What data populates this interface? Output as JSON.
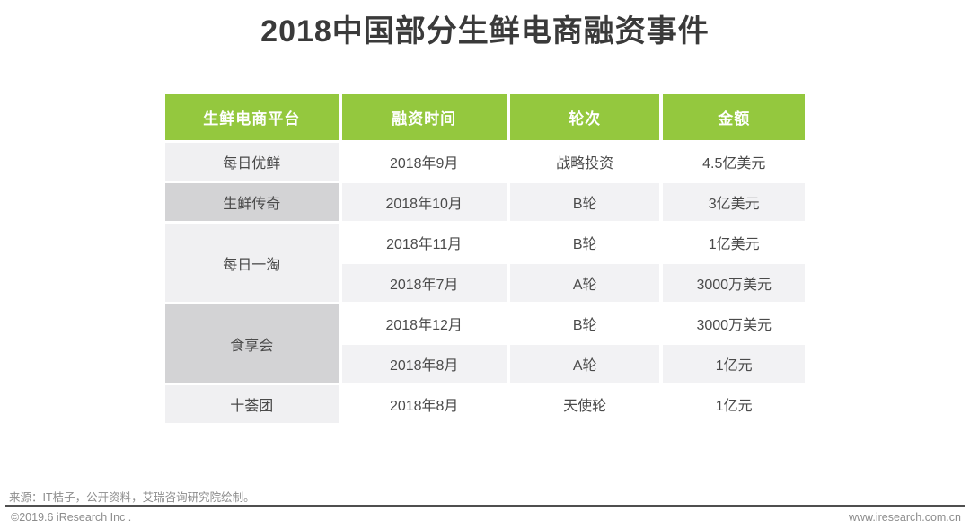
{
  "title": "2018中国部分生鲜电商融资事件",
  "colors": {
    "header_green": "#94c83e",
    "platform_cell_light": "#f0f0f2",
    "platform_cell_dark": "#d3d3d5",
    "row_alt_gray": "#f2f2f4",
    "body_text": "#4a4a4a",
    "title_text": "#3a3a3a",
    "footer_text": "#8c8c8c",
    "footer_line": "#4f4f4f"
  },
  "chart_data": {
    "type": "table",
    "title": "2018中国部分生鲜电商融资事件",
    "columns": [
      "生鲜电商平台",
      "融资时间",
      "轮次",
      "金额"
    ],
    "platform_groups": [
      {
        "name": "每日优鲜",
        "rowspan": 1,
        "shade": "light"
      },
      {
        "name": "生鲜传奇",
        "rowspan": 1,
        "shade": "dark"
      },
      {
        "name": "每日一淘",
        "rowspan": 2,
        "shade": "light"
      },
      {
        "name": "食享会",
        "rowspan": 2,
        "shade": "dark"
      },
      {
        "name": "十荟团",
        "rowspan": 1,
        "shade": "light"
      }
    ],
    "rows": [
      {
        "platform": "每日优鲜",
        "time": "2018年9月",
        "round": "战略投资",
        "amount": "4.5亿美元"
      },
      {
        "platform": "生鲜传奇",
        "time": "2018年10月",
        "round": "B轮",
        "amount": "3亿美元"
      },
      {
        "platform": "每日一淘",
        "time": "2018年11月",
        "round": "B轮",
        "amount": "1亿美元"
      },
      {
        "platform": "每日一淘",
        "time": "2018年7月",
        "round": "A轮",
        "amount": "3000万美元"
      },
      {
        "platform": "食享会",
        "time": "2018年12月",
        "round": "B轮",
        "amount": "3000万美元"
      },
      {
        "platform": "食享会",
        "time": "2018年8月",
        "round": "A轮",
        "amount": "1亿元"
      },
      {
        "platform": "十荟团",
        "time": "2018年8月",
        "round": "天使轮",
        "amount": "1亿元"
      }
    ]
  },
  "footer": {
    "source": "来源：IT桔子，公开资料，艾瑞咨询研究院绘制。",
    "copyright": "©2019.6 iResearch Inc .",
    "website": "www.iresearch.com.cn"
  }
}
